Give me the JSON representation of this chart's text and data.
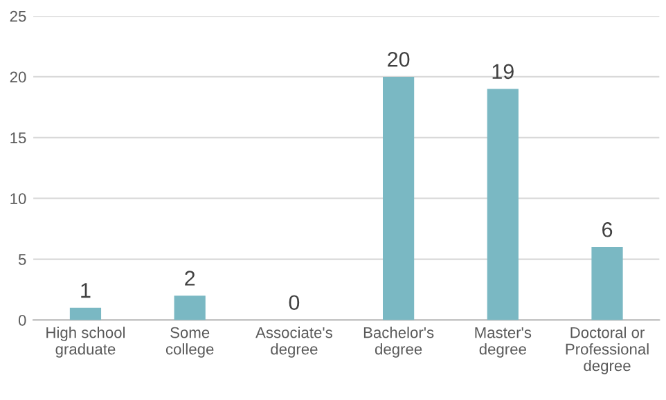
{
  "chart_data": {
    "type": "bar",
    "categories": [
      "High school\ngraduate",
      "Some\ncollege",
      "Associate's\ndegree",
      "Bachelor's\ndegree",
      "Master's\ndegree",
      "Doctoral or\nProfessional\ndegree"
    ],
    "values": [
      1,
      2,
      0,
      20,
      19,
      6
    ],
    "color": "#7ab8c3",
    "ylim": [
      0,
      25
    ],
    "yticks": [
      0,
      5,
      10,
      15,
      20,
      25
    ],
    "grid": "y",
    "data_labels": true,
    "legend": false
  }
}
